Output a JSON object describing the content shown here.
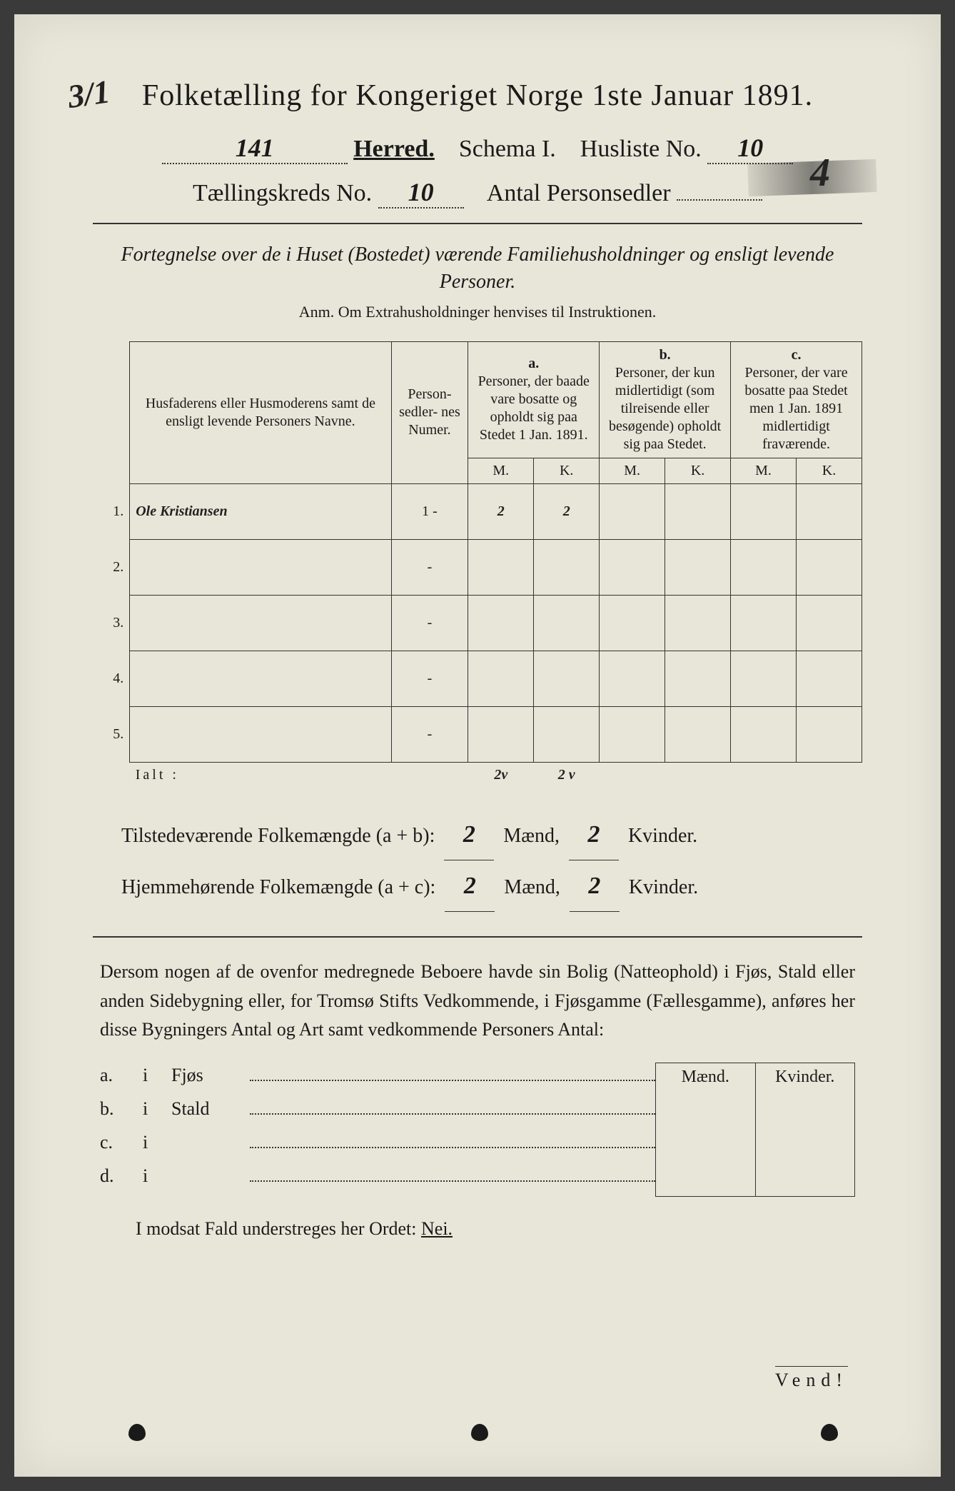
{
  "corner_note": "3/1",
  "title": "Folketælling for Kongeriget Norge 1ste Januar 1891.",
  "line2": {
    "herred_value": "141",
    "herred_label": "Herred.",
    "schema_label": "Schema I.",
    "husliste_label": "Husliste No.",
    "husliste_value": "10"
  },
  "line3": {
    "kreds_label": "Tællingskreds No.",
    "kreds_value": "10",
    "antal_label": "Antal Personsedler",
    "antal_value": "4"
  },
  "subtitle": "Fortegnelse over de i Huset (Bostedet) værende Familiehusholdninger og ensligt levende Personer.",
  "anm": "Anm. Om Extrahusholdninger henvises til Instruktionen.",
  "table": {
    "head_name": "Husfaderens eller Husmoderens samt de ensligt levende Personers Navne.",
    "head_num": "Person-\nsedler-\nnes\nNumer.",
    "head_a_letter": "a.",
    "head_a": "Personer, der baade vare bosatte og opholdt sig paa Stedet 1 Jan. 1891.",
    "head_b_letter": "b.",
    "head_b": "Personer, der kun midlertidigt (som tilreisende eller besøgende) opholdt sig paa Stedet.",
    "head_c_letter": "c.",
    "head_c": "Personer, der vare bosatte paa Stedet men 1 Jan. 1891 midlertidigt fraværende.",
    "mk_m": "M.",
    "mk_k": "K.",
    "rows": [
      {
        "n": "1.",
        "name": "Ole Kristiansen",
        "num": "1 -",
        "a_m": "2",
        "a_k": "2",
        "b_m": "",
        "b_k": "",
        "c_m": "",
        "c_k": ""
      },
      {
        "n": "2.",
        "name": "",
        "num": "-",
        "a_m": "",
        "a_k": "",
        "b_m": "",
        "b_k": "",
        "c_m": "",
        "c_k": ""
      },
      {
        "n": "3.",
        "name": "",
        "num": "-",
        "a_m": "",
        "a_k": "",
        "b_m": "",
        "b_k": "",
        "c_m": "",
        "c_k": ""
      },
      {
        "n": "4.",
        "name": "",
        "num": "-",
        "a_m": "",
        "a_k": "",
        "b_m": "",
        "b_k": "",
        "c_m": "",
        "c_k": ""
      },
      {
        "n": "5.",
        "name": "",
        "num": "-",
        "a_m": "",
        "a_k": "",
        "b_m": "",
        "b_k": "",
        "c_m": "",
        "c_k": ""
      }
    ],
    "ialt_label": "Ialt :",
    "ialt": {
      "a_m": "2v",
      "a_k": "2 v",
      "b_m": "",
      "b_k": "",
      "c_m": "",
      "c_k": ""
    }
  },
  "summary": {
    "line1_a": "Tilstedeværende Folkemængde (a + b):",
    "line1_m": "2",
    "line1_mlab": "Mænd,",
    "line1_k": "2",
    "line1_klab": "Kvinder.",
    "line2_a": "Hjemmehørende Folkemængde (a + c):",
    "line2_m": "2",
    "line2_mlab": "Mænd,",
    "line2_k": "2",
    "line2_klab": "Kvinder."
  },
  "paragraph": "Dersom nogen af de ovenfor medregnede Beboere havde sin Bolig (Natteophold) i Fjøs, Stald eller anden Sidebygning eller, for Tromsø Stifts Vedkommende, i Fjøsgamme (Fællesgamme), anføres her disse Bygningers Antal og Art samt vedkommende Personers Antal:",
  "abcd": {
    "mend": "Mænd.",
    "kvinder": "Kvinder.",
    "rows": [
      {
        "lab": "a.",
        "i": "i",
        "type": "Fjøs"
      },
      {
        "lab": "b.",
        "i": "i",
        "type": "Stald"
      },
      {
        "lab": "c.",
        "i": "i",
        "type": ""
      },
      {
        "lab": "d.",
        "i": "i",
        "type": ""
      }
    ]
  },
  "nei_line": "I modsat Fald understreges her Ordet: ",
  "nei_word": "Nei.",
  "vend": "Vend!",
  "colors": {
    "paper": "#e8e6d8",
    "ink": "#1a1a1a",
    "bg": "#3a3a3a"
  }
}
